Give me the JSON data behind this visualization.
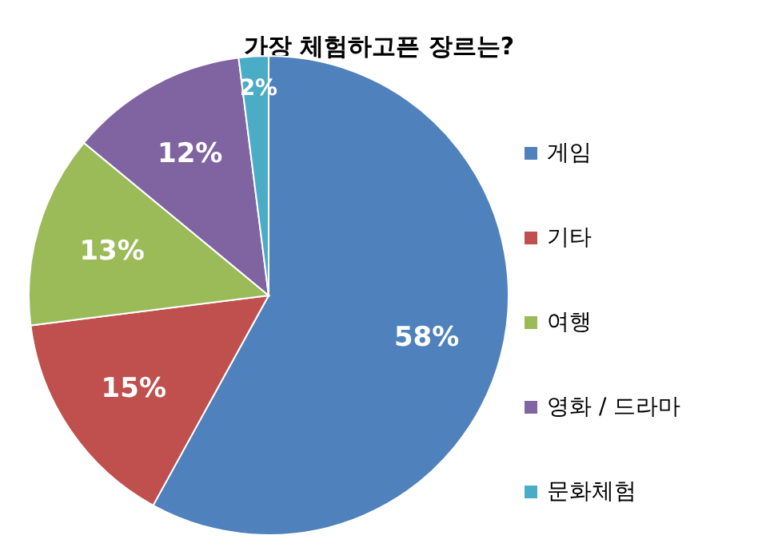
{
  "chart_data": {
    "type": "pie",
    "title": "가장 체험하고픈 장르는?",
    "categories": [
      "게임",
      "기타",
      "여행",
      "영화 / 드라마",
      "문화체험"
    ],
    "values": [
      58,
      15,
      13,
      12,
      2
    ],
    "colors": [
      "#4f81bd",
      "#c0504d",
      "#9bbb59",
      "#8064a2",
      "#4bacc6"
    ],
    "value_labels": [
      "58%",
      "15%",
      "13%",
      "12%",
      "2%"
    ],
    "legend": "right"
  }
}
